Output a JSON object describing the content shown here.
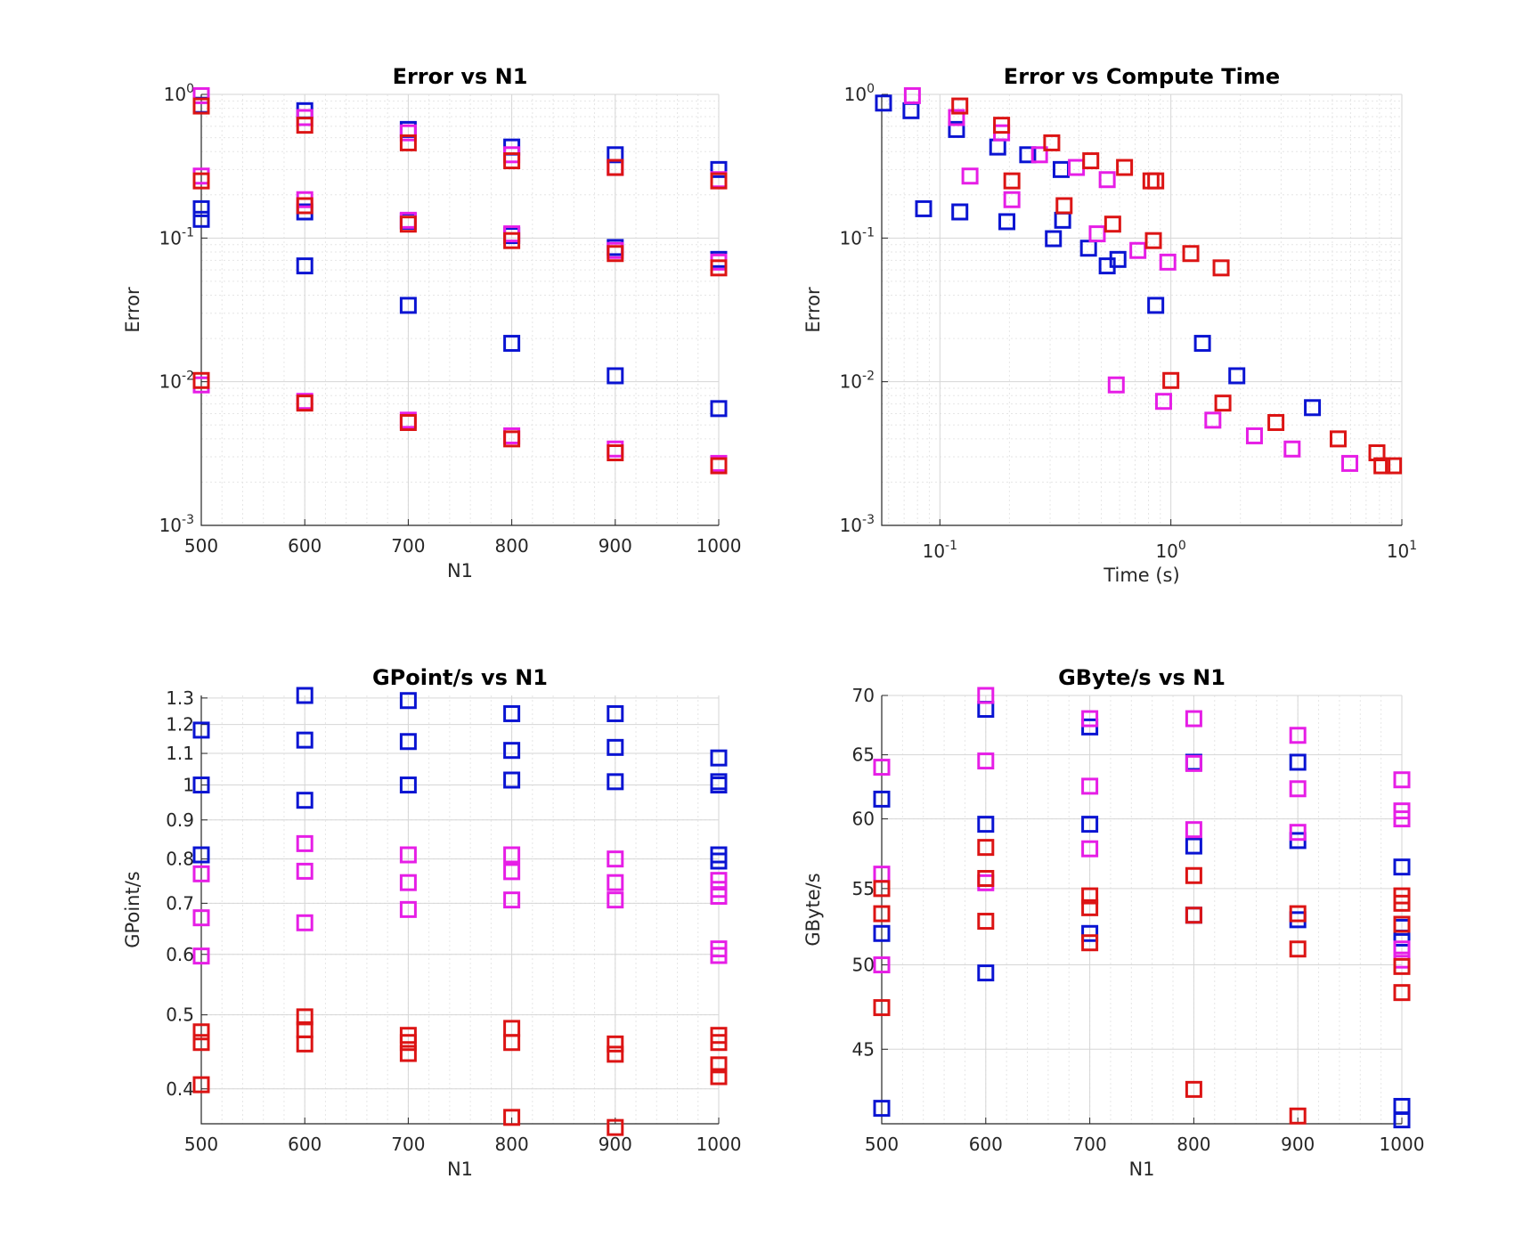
{
  "series_colors": {
    "blue": "#0a14d2",
    "magenta": "#e61ee6",
    "red": "#dc1414"
  },
  "chart_data": [
    {
      "type": "scatter",
      "title": "Error vs N1",
      "xlabel": "N1",
      "ylabel": "Error",
      "xlim": [
        500,
        1000
      ],
      "ylim": [
        0.001,
        1
      ],
      "yscale": "log",
      "grid": true,
      "xticks": [
        500,
        600,
        700,
        800,
        900,
        1000
      ],
      "yticks": [
        0.001,
        0.01,
        0.1,
        1
      ],
      "yticklabels": [
        [
          "10",
          "-3"
        ],
        [
          "10",
          "-2"
        ],
        [
          "10",
          "-1"
        ],
        [
          "10",
          "0"
        ]
      ],
      "series": [
        {
          "color": "blue",
          "points": [
            [
              500,
              0.84
            ],
            [
              500,
              0.16
            ],
            [
              500,
              0.135
            ],
            [
              600,
              0.77
            ],
            [
              600,
              0.152
            ],
            [
              600,
              0.064
            ],
            [
              700,
              0.57
            ],
            [
              700,
              0.131
            ],
            [
              700,
              0.034
            ],
            [
              800,
              0.43
            ],
            [
              800,
              0.104
            ],
            [
              800,
              0.0185
            ],
            [
              900,
              0.38
            ],
            [
              900,
              0.086
            ],
            [
              900,
              0.011
            ],
            [
              1000,
              0.3
            ],
            [
              1000,
              0.071
            ],
            [
              1000,
              0.0065
            ]
          ]
        },
        {
          "color": "magenta",
          "points": [
            [
              500,
              0.98
            ],
            [
              500,
              0.27
            ],
            [
              500,
              0.0095
            ],
            [
              600,
              0.69
            ],
            [
              600,
              0.185
            ],
            [
              600,
              0.0073
            ],
            [
              700,
              0.54
            ],
            [
              700,
              0.133
            ],
            [
              700,
              0.0054
            ],
            [
              800,
              0.38
            ],
            [
              800,
              0.107
            ],
            [
              800,
              0.0042
            ],
            [
              900,
              0.31
            ],
            [
              900,
              0.082
            ],
            [
              900,
              0.0034
            ],
            [
              1000,
              0.255
            ],
            [
              1000,
              0.068
            ],
            [
              1000,
              0.0027
            ]
          ]
        },
        {
          "color": "red",
          "points": [
            [
              500,
              0.83
            ],
            [
              500,
              0.25
            ],
            [
              500,
              0.0102
            ],
            [
              600,
              0.61
            ],
            [
              600,
              0.168
            ],
            [
              600,
              0.0071
            ],
            [
              700,
              0.46
            ],
            [
              700,
              0.125
            ],
            [
              700,
              0.0052
            ],
            [
              800,
              0.345
            ],
            [
              800,
              0.096
            ],
            [
              800,
              0.004
            ],
            [
              900,
              0.31
            ],
            [
              900,
              0.078
            ],
            [
              900,
              0.0032
            ],
            [
              1000,
              0.25
            ],
            [
              1000,
              0.062
            ],
            [
              1000,
              0.0026
            ]
          ]
        }
      ]
    },
    {
      "type": "scatter",
      "title": "Error vs Compute Time",
      "xlabel": "Time (s)",
      "ylabel": "Error",
      "xlim": [
        0.056,
        10
      ],
      "ylim": [
        0.001,
        1
      ],
      "xscale": "log",
      "yscale": "log",
      "grid": true,
      "xticks": [
        0.1,
        1,
        10
      ],
      "xticklabels": [
        [
          "10",
          "-1"
        ],
        [
          "10",
          "0"
        ],
        [
          "10",
          "1"
        ]
      ],
      "yticks": [
        0.001,
        0.01,
        0.1,
        1
      ],
      "yticklabels": [
        [
          "10",
          "-3"
        ],
        [
          "10",
          "-2"
        ],
        [
          "10",
          "-1"
        ],
        [
          "10",
          "0"
        ]
      ],
      "series": [
        {
          "color": "blue",
          "points": [
            [
              0.057,
              0.87
            ],
            [
              0.075,
              0.77
            ],
            [
              0.085,
              0.16
            ],
            [
              0.118,
              0.57
            ],
            [
              0.122,
              0.152
            ],
            [
              0.178,
              0.43
            ],
            [
              0.195,
              0.13
            ],
            [
              0.24,
              0.38
            ],
            [
              0.31,
              0.099
            ],
            [
              0.335,
              0.3
            ],
            [
              0.34,
              0.133
            ],
            [
              0.44,
              0.085
            ],
            [
              0.53,
              0.064
            ],
            [
              0.59,
              0.071
            ],
            [
              0.86,
              0.034
            ],
            [
              1.37,
              0.0185
            ],
            [
              1.93,
              0.011
            ],
            [
              4.1,
              0.0066
            ]
          ]
        },
        {
          "color": "magenta",
          "points": [
            [
              0.076,
              0.98
            ],
            [
              0.118,
              0.69
            ],
            [
              0.135,
              0.27
            ],
            [
              0.185,
              0.54
            ],
            [
              0.205,
              0.185
            ],
            [
              0.27,
              0.38
            ],
            [
              0.39,
              0.31
            ],
            [
              0.48,
              0.107
            ],
            [
              0.53,
              0.255
            ],
            [
              0.58,
              0.0095
            ],
            [
              0.72,
              0.082
            ],
            [
              0.93,
              0.0073
            ],
            [
              0.97,
              0.068
            ],
            [
              1.52,
              0.0054
            ],
            [
              2.3,
              0.0042
            ],
            [
              3.35,
              0.0034
            ],
            [
              5.95,
              0.0027
            ]
          ]
        },
        {
          "color": "red",
          "points": [
            [
              0.122,
              0.83
            ],
            [
              0.185,
              0.61
            ],
            [
              0.205,
              0.25
            ],
            [
              0.305,
              0.46
            ],
            [
              0.345,
              0.168
            ],
            [
              0.45,
              0.345
            ],
            [
              0.56,
              0.125
            ],
            [
              0.63,
              0.31
            ],
            [
              0.82,
              0.25
            ],
            [
              0.86,
              0.25
            ],
            [
              0.84,
              0.096
            ],
            [
              1.0,
              0.0102
            ],
            [
              1.22,
              0.078
            ],
            [
              1.65,
              0.062
            ],
            [
              1.68,
              0.0071
            ],
            [
              2.85,
              0.0052
            ],
            [
              5.3,
              0.004
            ],
            [
              7.8,
              0.0032
            ],
            [
              8.2,
              0.0026
            ],
            [
              9.2,
              0.0026
            ]
          ]
        }
      ]
    },
    {
      "type": "scatter",
      "title": "GPoint/s vs N1",
      "xlabel": "N1",
      "ylabel": "GPoint/s",
      "xlim": [
        500,
        1000
      ],
      "ylim": [
        0.36,
        1.31
      ],
      "yscale": "log",
      "grid": true,
      "xticks": [
        500,
        600,
        700,
        800,
        900,
        1000
      ],
      "yticks": [
        0.4,
        0.5,
        0.6,
        0.7,
        0.8,
        0.9,
        1.0,
        1.1,
        1.2,
        1.3
      ],
      "yticklabels": [
        "0.4",
        "0.5",
        "0.6",
        "0.7",
        "0.8",
        "0.9",
        "1",
        "1.1",
        "1.2",
        "1.3"
      ],
      "series": [
        {
          "color": "blue",
          "points": [
            [
              500,
              1.18
            ],
            [
              500,
              1.0
            ],
            [
              500,
              0.81
            ],
            [
              600,
              1.31
            ],
            [
              600,
              1.145
            ],
            [
              600,
              0.955
            ],
            [
              700,
              1.29
            ],
            [
              700,
              1.14
            ],
            [
              700,
              1.0
            ],
            [
              800,
              1.24
            ],
            [
              800,
              1.11
            ],
            [
              800,
              1.015
            ],
            [
              900,
              1.24
            ],
            [
              900,
              1.12
            ],
            [
              900,
              1.01
            ],
            [
              1000,
              1.085
            ],
            [
              1000,
              1.01
            ],
            [
              1000,
              1.0
            ],
            [
              1000,
              0.81
            ],
            [
              1000,
              0.795
            ]
          ]
        },
        {
          "color": "magenta",
          "points": [
            [
              500,
              0.765
            ],
            [
              500,
              0.67
            ],
            [
              500,
              0.597
            ],
            [
              600,
              0.838
            ],
            [
              600,
              0.771
            ],
            [
              600,
              0.66
            ],
            [
              700,
              0.81
            ],
            [
              700,
              0.745
            ],
            [
              700,
              0.687
            ],
            [
              800,
              0.81
            ],
            [
              800,
              0.77
            ],
            [
              800,
              0.707
            ],
            [
              900,
              0.8
            ],
            [
              900,
              0.745
            ],
            [
              900,
              0.707
            ],
            [
              1000,
              0.75
            ],
            [
              1000,
              0.73
            ],
            [
              1000,
              0.715
            ],
            [
              1000,
              0.61
            ],
            [
              1000,
              0.598
            ]
          ]
        },
        {
          "color": "red",
          "points": [
            [
              500,
              0.475
            ],
            [
              500,
              0.46
            ],
            [
              500,
              0.405
            ],
            [
              600,
              0.497
            ],
            [
              600,
              0.478
            ],
            [
              600,
              0.458
            ],
            [
              700,
              0.47
            ],
            [
              700,
              0.46
            ],
            [
              700,
              0.445
            ],
            [
              800,
              0.48
            ],
            [
              800,
              0.46
            ],
            [
              800,
              0.367
            ],
            [
              900,
              0.458
            ],
            [
              900,
              0.444
            ],
            [
              900,
              0.356
            ],
            [
              1000,
              0.47
            ],
            [
              1000,
              0.46
            ],
            [
              1000,
              0.43
            ],
            [
              1000,
              0.415
            ]
          ]
        }
      ]
    },
    {
      "type": "scatter",
      "title": "GByte/s vs N1",
      "xlabel": "N1",
      "ylabel": "GByte/s",
      "xlim": [
        500,
        1000
      ],
      "ylim": [
        41,
        70
      ],
      "yscale": "log",
      "grid": true,
      "xticks": [
        500,
        600,
        700,
        800,
        900,
        1000
      ],
      "yticks": [
        45,
        50,
        55,
        60,
        65,
        70
      ],
      "yticklabels": [
        "45",
        "50",
        "55",
        "60",
        "65",
        "70"
      ],
      "series": [
        {
          "color": "blue",
          "points": [
            [
              500,
              61.5
            ],
            [
              500,
              52.0
            ],
            [
              500,
              41.8
            ],
            [
              600,
              68.8
            ],
            [
              600,
              59.6
            ],
            [
              600,
              49.5
            ],
            [
              700,
              67.3
            ],
            [
              700,
              59.6
            ],
            [
              700,
              52.0
            ],
            [
              800,
              64.4
            ],
            [
              800,
              58.0
            ],
            [
              800,
              53.2
            ],
            [
              900,
              64.4
            ],
            [
              900,
              58.4
            ],
            [
              900,
              52.9
            ],
            [
              1000,
              56.5
            ],
            [
              1000,
              52.4
            ],
            [
              1000,
              51.7
            ],
            [
              1000,
              41.9
            ],
            [
              1000,
              41.2
            ]
          ]
        },
        {
          "color": "magenta",
          "points": [
            [
              500,
              64.0
            ],
            [
              500,
              56.0
            ],
            [
              500,
              50.0
            ],
            [
              600,
              70.0
            ],
            [
              600,
              64.5
            ],
            [
              600,
              55.4
            ],
            [
              700,
              68.0
            ],
            [
              700,
              62.5
            ],
            [
              700,
              57.8
            ],
            [
              800,
              68.0
            ],
            [
              800,
              64.3
            ],
            [
              800,
              59.2
            ],
            [
              900,
              66.6
            ],
            [
              900,
              62.3
            ],
            [
              900,
              59.0
            ],
            [
              1000,
              63.0
            ],
            [
              1000,
              60.6
            ],
            [
              1000,
              60.0
            ],
            [
              1000,
              51.0
            ],
            [
              1000,
              50.3
            ]
          ]
        },
        {
          "color": "red",
          "points": [
            [
              500,
              55.0
            ],
            [
              500,
              53.3
            ],
            [
              500,
              47.4
            ],
            [
              600,
              57.9
            ],
            [
              600,
              55.7
            ],
            [
              600,
              52.8
            ],
            [
              700,
              54.5
            ],
            [
              700,
              53.7
            ],
            [
              700,
              51.4
            ],
            [
              800,
              55.9
            ],
            [
              800,
              53.2
            ],
            [
              800,
              42.8
            ],
            [
              900,
              53.3
            ],
            [
              900,
              51.0
            ],
            [
              900,
              41.4
            ],
            [
              1000,
              54.5
            ],
            [
              1000,
              54.0
            ],
            [
              1000,
              52.6
            ],
            [
              1000,
              49.9
            ],
            [
              1000,
              48.3
            ]
          ]
        }
      ]
    }
  ]
}
